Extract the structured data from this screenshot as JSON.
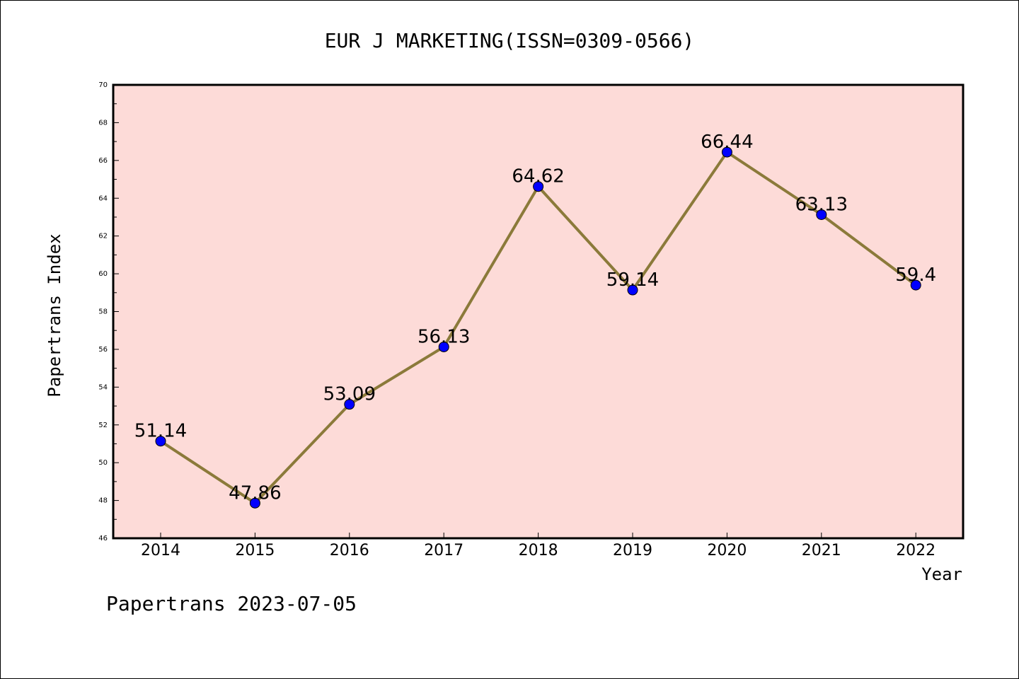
{
  "chart_data": {
    "type": "line",
    "title": "EUR J MARKETING(ISSN=0309-0566)",
    "xlabel": "Year",
    "ylabel": "Papertrans Index",
    "categories": [
      "2014",
      "2015",
      "2016",
      "2017",
      "2018",
      "2019",
      "2020",
      "2021",
      "2022"
    ],
    "series": [
      {
        "values": [
          51.14,
          47.86,
          53.09,
          56.13,
          64.62,
          59.14,
          66.44,
          63.13,
          59.4
        ],
        "labels": [
          "51.14",
          "47.86",
          "53.09",
          "56.13",
          "64.62",
          "59.14",
          "66.44",
          "63.13",
          "59.4"
        ]
      }
    ],
    "ylim": [
      46,
      70
    ],
    "yticks": [
      "46",
      "48",
      "50",
      "52",
      "54",
      "56",
      "58",
      "60",
      "62",
      "64",
      "66",
      "68",
      "70"
    ],
    "grid": false,
    "colors": {
      "plot_background": "#fddbd8",
      "line": "#8b7a3a",
      "marker": "#0000ff"
    }
  },
  "footer": "Papertrans 2023-07-05"
}
